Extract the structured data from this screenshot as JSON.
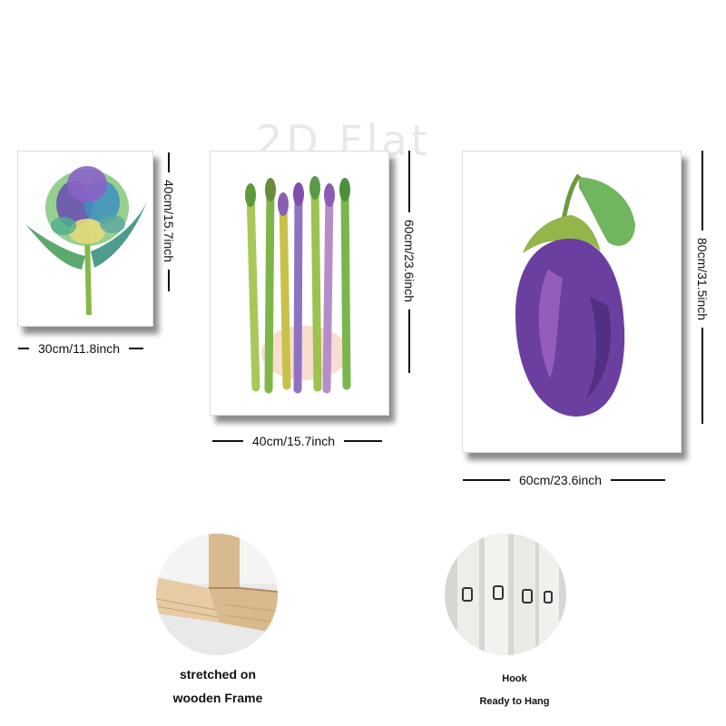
{
  "watermark": "2D Flat",
  "paintings": [
    {
      "subject_icon": "artichoke-painting",
      "width_label": "30cm/11.8inch",
      "height_label": "40cm/15.7inch"
    },
    {
      "subject_icon": "asparagus-painting",
      "width_label": "40cm/15.7inch",
      "height_label": "60cm/23.6inch"
    },
    {
      "subject_icon": "eggplant-painting",
      "width_label": "60cm/23.6inch",
      "height_label": "80cm/31.5inch"
    }
  ],
  "features": {
    "frame": {
      "icon": "wooden-frame-photo",
      "line1": "stretched on",
      "line2": "wooden Frame"
    },
    "hook": {
      "icon": "hook-photo",
      "line1": "Hook",
      "line2": "Ready to Hang"
    }
  },
  "colors": {
    "purple": "#6b3fa0",
    "green": "#6fb53c",
    "wood": "#d9b98e"
  }
}
